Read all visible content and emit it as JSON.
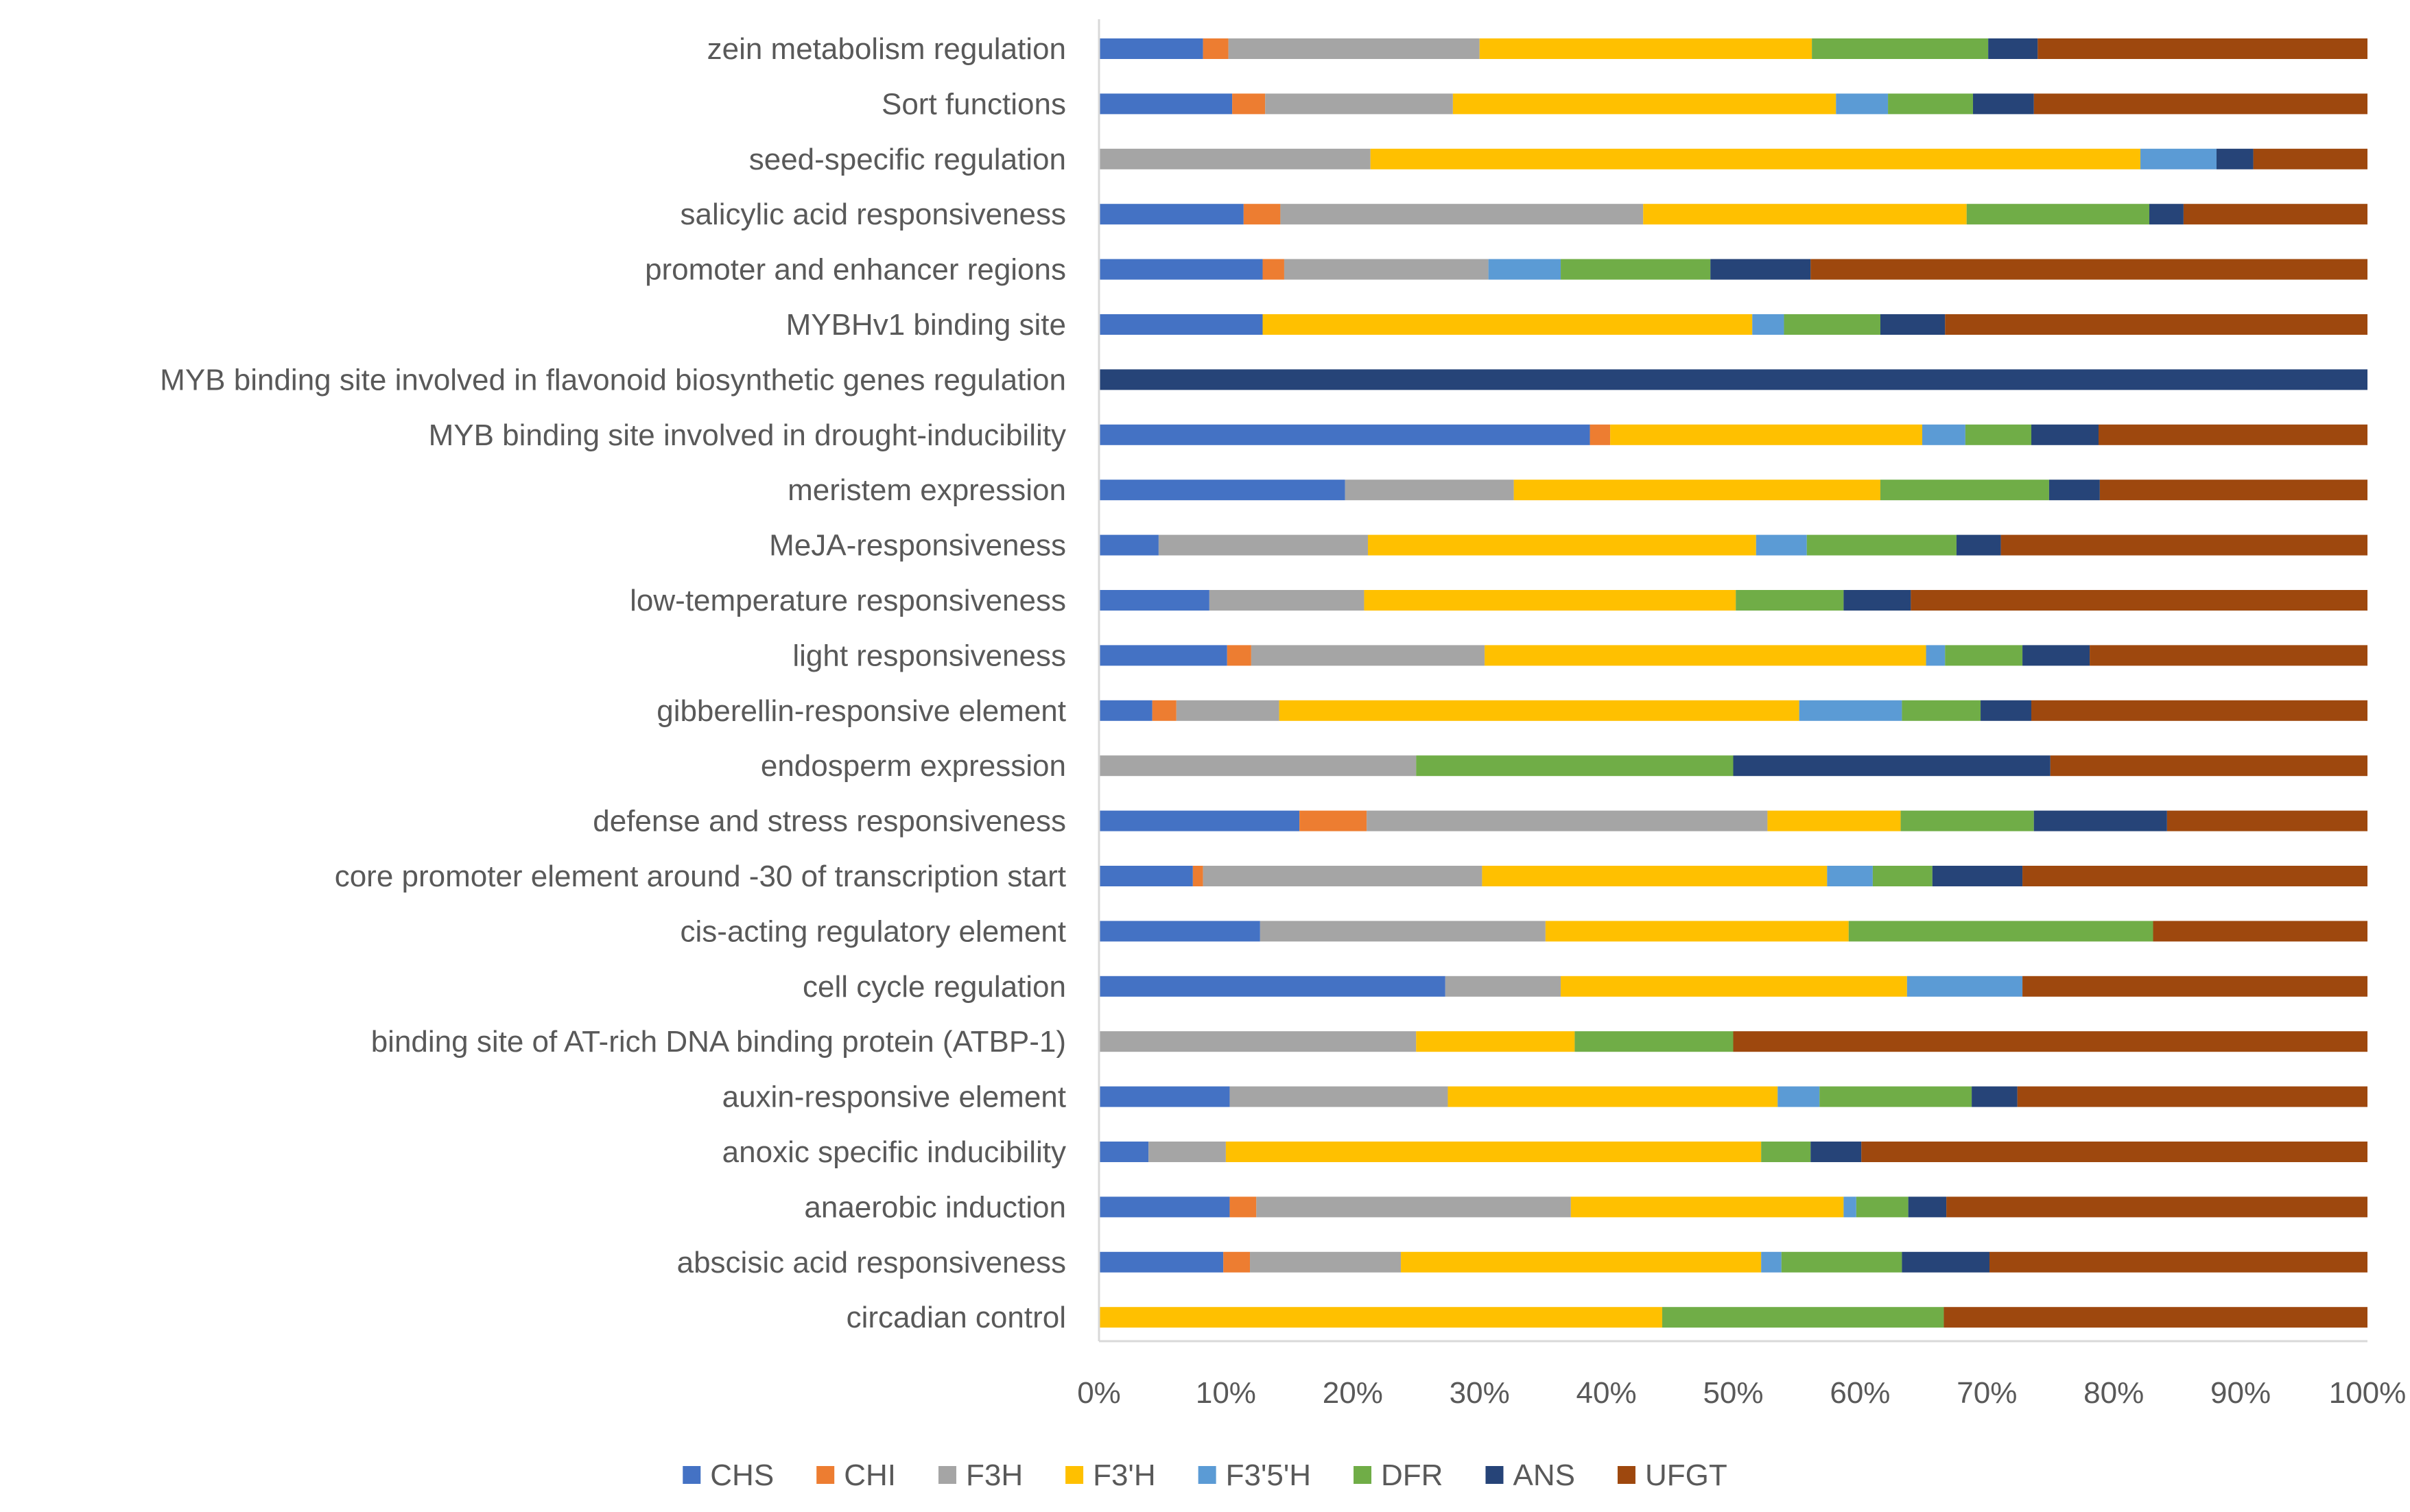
{
  "chart_data": {
    "type": "bar",
    "orientation": "horizontal",
    "stacked": "percent",
    "title": "",
    "xlabel": "",
    "ylabel": "",
    "xlim": [
      0,
      100
    ],
    "x_ticks": [
      "0%",
      "10%",
      "20%",
      "30%",
      "40%",
      "50%",
      "60%",
      "70%",
      "80%",
      "90%",
      "100%"
    ],
    "grid": false,
    "legend_position": "bottom",
    "categories": [
      "zein metabolism regulation",
      "Sort functions",
      "seed-specific regulation",
      "salicylic acid responsiveness",
      "promoter and enhancer regions",
      "MYBHv1 binding site",
      "MYB binding site involved in flavonoid biosynthetic genes regulation",
      "MYB binding site involved in drought-inducibility",
      "meristem expression",
      "MeJA-responsiveness",
      "low-temperature responsiveness",
      "light responsiveness",
      "gibberellin-responsive element",
      "endosperm expression",
      "defense and stress responsiveness",
      "core promoter element around -30 of transcription start",
      "cis-acting regulatory element",
      "cell cycle regulation",
      "binding site of AT-rich DNA binding protein (ATBP-1)",
      "auxin-responsive element",
      "anoxic specific inducibility",
      "anaerobic induction",
      "abscisic acid responsiveness",
      "circadian control"
    ],
    "series": [
      {
        "name": "CHS",
        "color": "#4472C4",
        "values": [
          8.2,
          10.5,
          0,
          11.4,
          12.9,
          12.9,
          0,
          38.7,
          19.4,
          4.7,
          8.7,
          10.1,
          4.2,
          0,
          15.8,
          7.4,
          12.7,
          27.3,
          0,
          10.3,
          3.9,
          10.3,
          9.8,
          0
        ]
      },
      {
        "name": "CHI",
        "color": "#ED7D31",
        "values": [
          2.0,
          2.6,
          0,
          2.9,
          1.7,
          0,
          0,
          1.6,
          0,
          0,
          0,
          1.9,
          1.9,
          0,
          5.3,
          0.8,
          0,
          0,
          0,
          0,
          0,
          2.1,
          2.1,
          0
        ]
      },
      {
        "name": "F3H",
        "color": "#A5A5A5",
        "values": [
          19.8,
          14.8,
          21.4,
          28.6,
          16.1,
          0,
          0,
          0,
          13.3,
          16.5,
          12.2,
          18.4,
          8.1,
          25.0,
          31.6,
          22.0,
          22.5,
          9.1,
          25.0,
          17.2,
          6.1,
          24.8,
          11.9,
          0
        ]
      },
      {
        "name": "F3'H",
        "color": "#FFC000",
        "values": [
          26.2,
          30.2,
          60.7,
          25.5,
          0,
          38.6,
          0,
          24.6,
          28.9,
          30.6,
          29.3,
          34.8,
          41.0,
          0,
          10.5,
          27.2,
          23.9,
          27.3,
          12.5,
          26.0,
          42.2,
          21.5,
          28.4,
          44.4
        ]
      },
      {
        "name": "F3'5'H",
        "color": "#5B9BD5",
        "values": [
          0,
          4.1,
          6.0,
          0,
          5.7,
          2.5,
          0,
          3.4,
          0,
          4.0,
          0,
          1.5,
          8.1,
          0,
          0,
          3.6,
          0,
          9.1,
          0,
          3.3,
          0,
          1.0,
          1.6,
          0
        ]
      },
      {
        "name": "DFR",
        "color": "#70AD47",
        "values": [
          13.9,
          6.7,
          0,
          14.4,
          11.8,
          7.6,
          0,
          5.2,
          13.3,
          11.8,
          8.5,
          6.1,
          6.2,
          25.0,
          10.5,
          4.7,
          24.0,
          0,
          12.5,
          12.0,
          3.9,
          4.1,
          9.5,
          22.2
        ]
      },
      {
        "name": "ANS",
        "color": "#264478",
        "values": [
          3.9,
          4.8,
          2.9,
          2.7,
          7.9,
          5.1,
          100,
          5.3,
          4.0,
          3.5,
          5.3,
          5.3,
          4.0,
          25.0,
          10.5,
          7.1,
          0,
          0,
          0,
          3.6,
          4.0,
          3.0,
          6.9,
          0
        ]
      },
      {
        "name": "UFGT",
        "color": "#9E480E",
        "values": [
          26.0,
          26.3,
          9.0,
          14.5,
          43.9,
          33.3,
          0,
          21.2,
          21.1,
          28.9,
          36.0,
          21.9,
          26.5,
          25.0,
          15.8,
          27.2,
          16.9,
          27.2,
          50.0,
          27.6,
          39.9,
          33.2,
          29.8,
          33.4
        ]
      }
    ]
  }
}
